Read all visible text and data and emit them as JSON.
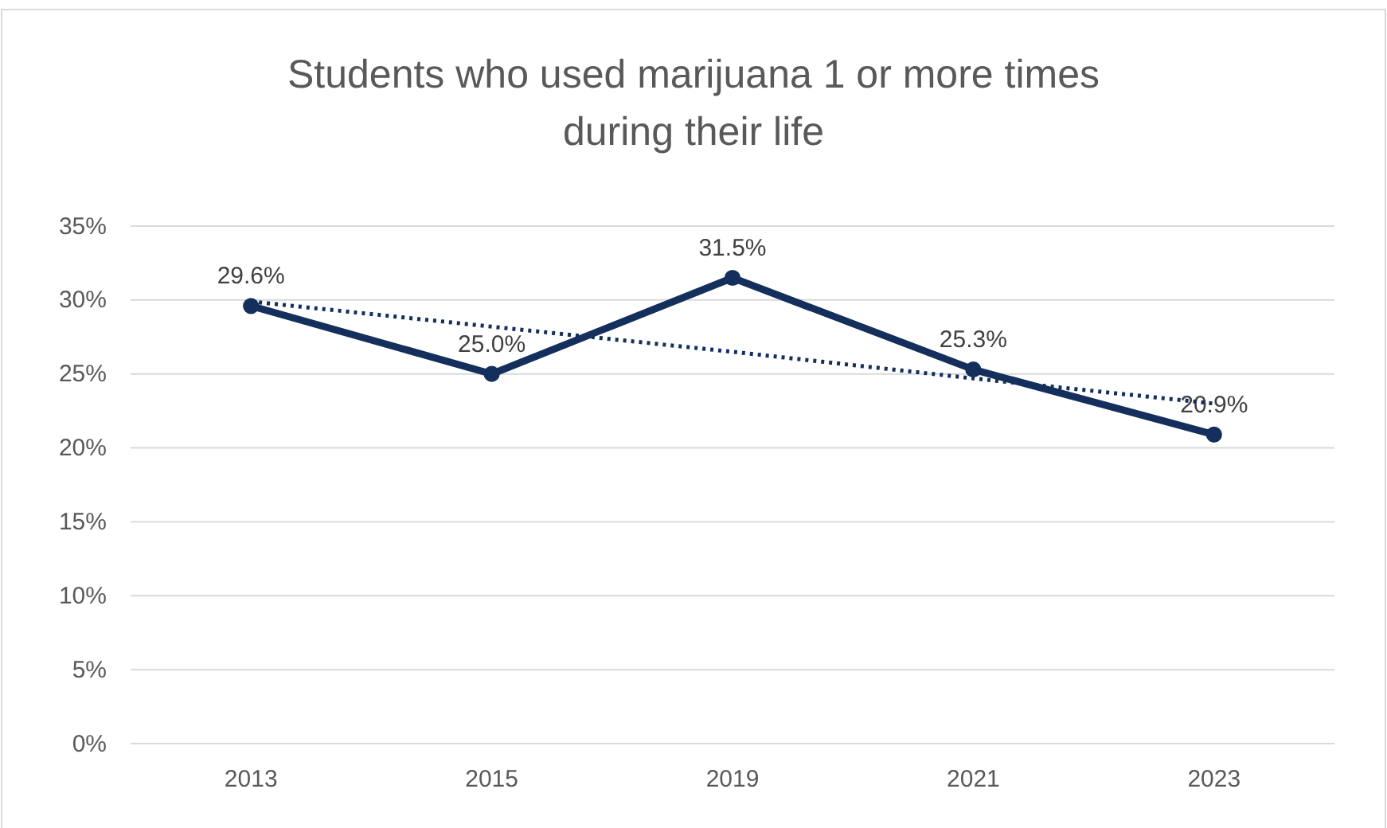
{
  "chart_data": {
    "type": "line",
    "title": "Students who used marijuana 1 or more times during their life",
    "categories": [
      "2013",
      "2015",
      "2019",
      "2021",
      "2023"
    ],
    "series": [
      {
        "color": "#142f5c",
        "values": [
          29.6,
          25.0,
          31.5,
          25.3,
          20.9
        ],
        "value_labels": [
          "29.6%",
          "25.0%",
          "31.5%",
          "25.3%",
          "20.9%"
        ],
        "marker": "circle",
        "line_style": "solid"
      },
      {
        "type": "line",
        "color": "#142f5c",
        "values": [
          29.9,
          28.2,
          26.5,
          24.7,
          23.0
        ],
        "marker": "none",
        "line_style": "dotted"
      }
    ],
    "ylim": [
      0,
      35
    ],
    "yticks": [
      {
        "value": 0,
        "label": "0%"
      },
      {
        "value": 5,
        "label": "5%"
      },
      {
        "value": 10,
        "label": "10%"
      },
      {
        "value": 15,
        "label": "15%"
      },
      {
        "value": 20,
        "label": "20%"
      },
      {
        "value": 25,
        "label": "25%"
      },
      {
        "value": 30,
        "label": "30%"
      },
      {
        "value": 35,
        "label": "35%"
      }
    ],
    "grid": "y"
  }
}
